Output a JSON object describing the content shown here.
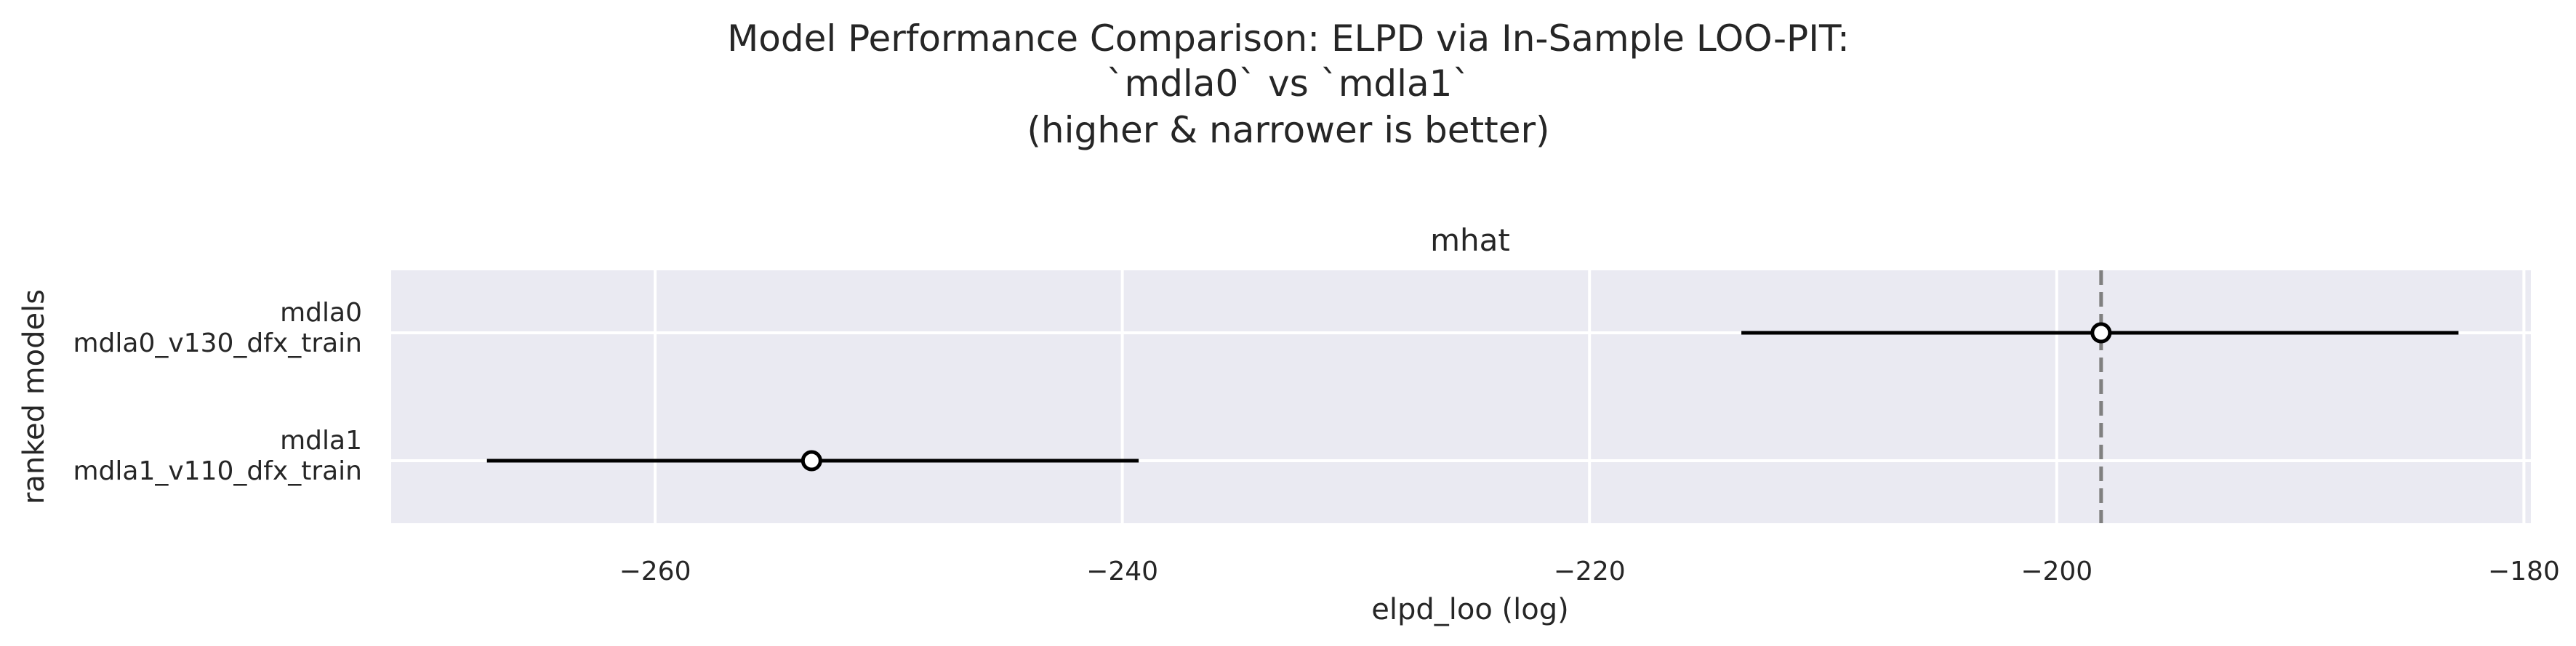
{
  "chart_data": {
    "type": "scatter",
    "title_lines": [
      "Model Performance Comparison: ELPD via In-Sample LOO-PIT:",
      "`mdla0` vs `mdla1`",
      "(higher & narrower is better)"
    ],
    "facet_title": "mhat",
    "xlabel": "elpd_loo (log)",
    "ylabel": "ranked models",
    "xlim": [
      -271.3,
      -179.7
    ],
    "xticks": [
      -260,
      -240,
      -220,
      -200,
      -180
    ],
    "xtick_labels": [
      "−260",
      "−240",
      "−220",
      "−200",
      "−180"
    ],
    "reference_line": -198.1,
    "grid": true,
    "models": [
      {
        "label_line1": "mdla0",
        "label_line2": "mdla0_v130_dfx_train",
        "elpd": -198.1,
        "low": -213.5,
        "high": -182.8
      },
      {
        "label_line1": "mdla1",
        "label_line2": "mdla1_v110_dfx_train",
        "elpd": -253.3,
        "low": -267.2,
        "high": -239.3
      }
    ],
    "colors": {
      "panel_bg": "#eaeaf2",
      "grid": "#ffffff",
      "line": "#000000",
      "marker_fill": "#ffffff",
      "reference_line": "#808080",
      "text": "#262626"
    }
  }
}
